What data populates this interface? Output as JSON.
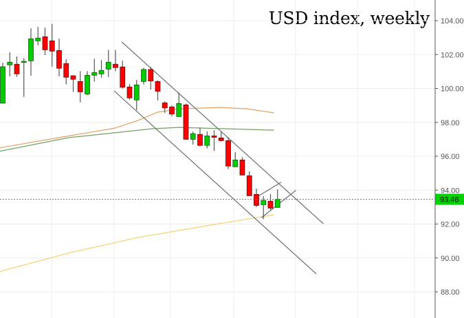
{
  "chart_data": {
    "type": "candlestick",
    "title": "USD index, weekly",
    "ylim": [
      87.5,
      105.2
    ],
    "y_ticks": [
      "104.00",
      "102.00",
      "100.00",
      "98.00",
      "96.00",
      "94.00",
      "92.00",
      "90.00",
      "88.00"
    ],
    "y_tick_values": [
      104,
      102,
      100,
      98,
      96,
      94,
      92,
      90,
      88
    ],
    "grid": true,
    "last_price": {
      "label": "93.46",
      "value": 93.46,
      "color": "#00d000"
    },
    "colors": {
      "up": "#00cc00",
      "down": "#ff0000",
      "wick": "#555555",
      "ma_fast": "#e0a060",
      "ma_mid": "#70a060",
      "ma_slow": "#f5d070",
      "trendline": "#777777"
    },
    "candles": [
      {
        "o": 99.13,
        "h": 101.52,
        "l": 99.13,
        "c": 101.28
      },
      {
        "o": 101.39,
        "h": 102.13,
        "l": 100.72,
        "c": 101.55
      },
      {
        "o": 101.43,
        "h": 101.89,
        "l": 100.68,
        "c": 100.86
      },
      {
        "o": 101.57,
        "h": 101.8,
        "l": 99.5,
        "c": 101.6
      },
      {
        "o": 101.63,
        "h": 103.55,
        "l": 100.75,
        "c": 102.93
      },
      {
        "o": 102.81,
        "h": 103.63,
        "l": 102.55,
        "c": 102.97
      },
      {
        "o": 103.05,
        "h": 103.59,
        "l": 101.97,
        "c": 102.28
      },
      {
        "o": 102.81,
        "h": 103.8,
        "l": 101.29,
        "c": 102.2
      },
      {
        "o": 102.24,
        "h": 102.94,
        "l": 100.72,
        "c": 101.19
      },
      {
        "o": 101.47,
        "h": 101.73,
        "l": 100.24,
        "c": 100.66
      },
      {
        "o": 100.75,
        "h": 100.78,
        "l": 99.8,
        "c": 100.54
      },
      {
        "o": 100.41,
        "h": 101.02,
        "l": 99.18,
        "c": 99.8
      },
      {
        "o": 99.67,
        "h": 101.02,
        "l": 99.6,
        "c": 100.78
      },
      {
        "o": 100.78,
        "h": 101.75,
        "l": 100.4,
        "c": 100.94
      },
      {
        "o": 100.86,
        "h": 101.68,
        "l": 100.64,
        "c": 101.06
      },
      {
        "o": 101.14,
        "h": 102.27,
        "l": 100.67,
        "c": 101.55
      },
      {
        "o": 101.43,
        "h": 102.27,
        "l": 101.02,
        "c": 101.23
      },
      {
        "o": 101.27,
        "h": 101.64,
        "l": 99.99,
        "c": 100.07
      },
      {
        "o": 100.09,
        "h": 100.26,
        "l": 99.34,
        "c": 99.44
      },
      {
        "o": 99.32,
        "h": 100.5,
        "l": 98.72,
        "c": 100.21
      },
      {
        "o": 100.41,
        "h": 101.21,
        "l": 100.24,
        "c": 101.12
      },
      {
        "o": 101.12,
        "h": 101.27,
        "l": 99.94,
        "c": 100.44
      },
      {
        "o": 100.41,
        "h": 100.48,
        "l": 99.29,
        "c": 99.83
      },
      {
        "o": 99.15,
        "h": 99.24,
        "l": 98.56,
        "c": 98.85
      },
      {
        "o": 98.91,
        "h": 98.99,
        "l": 98.37,
        "c": 98.49
      },
      {
        "o": 98.34,
        "h": 99.76,
        "l": 98.34,
        "c": 99.11
      },
      {
        "o": 99.03,
        "h": 99.11,
        "l": 97.0,
        "c": 97.0
      },
      {
        "o": 97.0,
        "h": 97.46,
        "l": 96.69,
        "c": 97.33
      },
      {
        "o": 97.29,
        "h": 97.69,
        "l": 96.58,
        "c": 96.64
      },
      {
        "o": 96.64,
        "h": 97.47,
        "l": 96.46,
        "c": 97.2
      },
      {
        "o": 97.2,
        "h": 97.53,
        "l": 96.31,
        "c": 97.12
      },
      {
        "o": 97.08,
        "h": 97.46,
        "l": 96.87,
        "c": 96.92
      },
      {
        "o": 96.92,
        "h": 97.12,
        "l": 95.24,
        "c": 95.42
      },
      {
        "o": 95.38,
        "h": 96.24,
        "l": 95.38,
        "c": 95.78
      },
      {
        "o": 95.78,
        "h": 95.95,
        "l": 94.89,
        "c": 94.89
      },
      {
        "o": 94.85,
        "h": 95.11,
        "l": 93.67,
        "c": 93.67
      },
      {
        "o": 93.75,
        "h": 94.09,
        "l": 93.0,
        "c": 93.1
      },
      {
        "o": 93.14,
        "h": 93.64,
        "l": 92.29,
        "c": 93.39
      },
      {
        "o": 93.35,
        "h": 93.77,
        "l": 92.85,
        "c": 92.94
      },
      {
        "o": 92.98,
        "h": 94.05,
        "l": 92.98,
        "c": 93.46
      }
    ],
    "moving_averages": [
      {
        "name": "ma_fast",
        "points": [
          [
            -0.4,
            96.5
          ],
          [
            9.4,
            97.2
          ],
          [
            15.8,
            97.65
          ],
          [
            19.1,
            98.1
          ],
          [
            22.0,
            98.6
          ],
          [
            25.0,
            98.8
          ],
          [
            30.8,
            98.88
          ],
          [
            34.7,
            98.8
          ],
          [
            38.5,
            98.56
          ]
        ]
      },
      {
        "name": "ma_mid",
        "points": [
          [
            -0.4,
            96.3
          ],
          [
            9.4,
            97.1
          ],
          [
            15.8,
            97.38
          ],
          [
            21.1,
            97.62
          ],
          [
            25.0,
            97.7
          ],
          [
            38.5,
            97.54
          ]
        ]
      },
      {
        "name": "ma_slow",
        "points": [
          [
            -0.4,
            89.2
          ],
          [
            9.4,
            90.3
          ],
          [
            19.1,
            91.2
          ],
          [
            28.9,
            91.9
          ],
          [
            38.5,
            92.55
          ]
        ]
      }
    ],
    "trendlines": [
      {
        "name": "channel-upper",
        "from": [
          16.9,
          102.74
        ],
        "to": [
          45.5,
          92.02
        ]
      },
      {
        "name": "channel-lower",
        "from": [
          15.8,
          99.86
        ],
        "to": [
          44.5,
          89.06
        ]
      },
      {
        "name": "wedge-upper",
        "from": [
          36.0,
          93.58
        ],
        "to": [
          39.5,
          94.47
        ]
      },
      {
        "name": "wedge-lower",
        "from": [
          36.7,
          92.37
        ],
        "to": [
          41.6,
          93.99
        ]
      }
    ]
  }
}
